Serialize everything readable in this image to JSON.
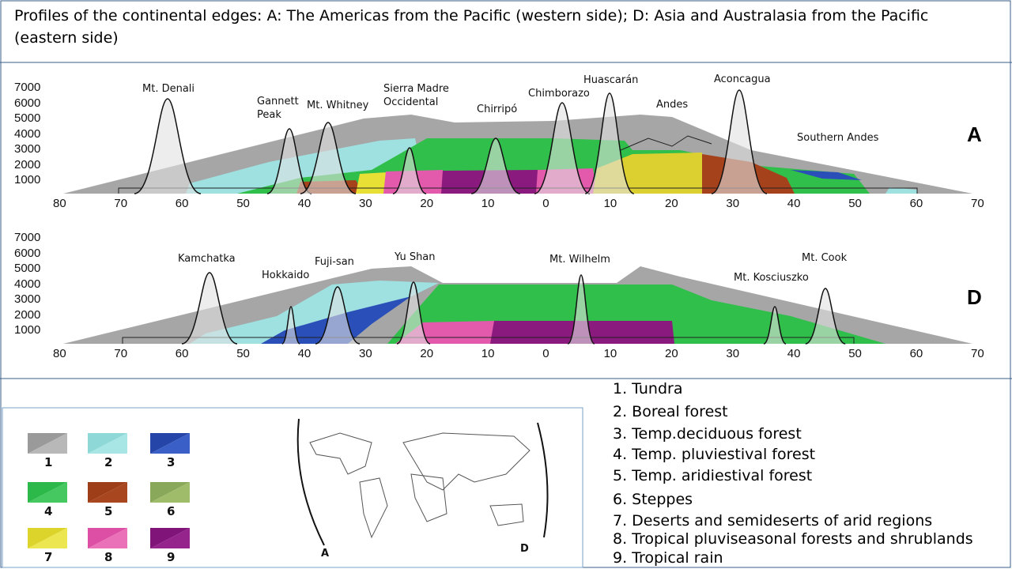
{
  "title": "Profiles of the continental edges: A: The Americas from the Pacific (western side); D: Asia and Australasia from the Pacific (eastern side)",
  "profile_a": {
    "label": "A",
    "elevations": [
      7000,
      6000,
      5000,
      4000,
      3000,
      2000,
      1000
    ],
    "latitudes": [
      80,
      70,
      60,
      50,
      40,
      30,
      20,
      10,
      0,
      10,
      20,
      30,
      40,
      50,
      60,
      70
    ],
    "peaks": [
      "Mt. Denali",
      "Gannett Peak",
      "Mt. Whitney",
      "Sierra Madre Occidental",
      "Chirripó",
      "Chimborazo",
      "Huascarán",
      "Andes",
      "Aconcagua",
      "Southern Andes"
    ]
  },
  "profile_d": {
    "label": "D",
    "elevations": [
      7000,
      6000,
      5000,
      4000,
      3000,
      2000,
      1000
    ],
    "latitudes": [
      80,
      70,
      60,
      50,
      40,
      30,
      20,
      10,
      0,
      10,
      20,
      30,
      40,
      50,
      60,
      70
    ],
    "peaks": [
      "Kamchatka",
      "Hokkaido",
      "Fuji-san",
      "Yu Shan",
      "Mt. Wilhelm",
      "Mt. Kosciuszko",
      "Mt. Cook"
    ]
  },
  "legend": [
    "1",
    "2",
    "3",
    "4",
    "5",
    "6",
    "7",
    "8",
    "9"
  ],
  "map": {
    "a": "A",
    "d": "D"
  },
  "zones": [
    "1. Tundra",
    "2. Boreal forest",
    "3. Temp.deciduous forest",
    "4. Temp. pluviestival forest",
    "5. Temp. aridiestival forest",
    "6. Steppes",
    "7. Deserts and semideserts of arid regions",
    "8. Tropical pluviseasonal forests and shrublands",
    "9. Tropical rain"
  ]
}
